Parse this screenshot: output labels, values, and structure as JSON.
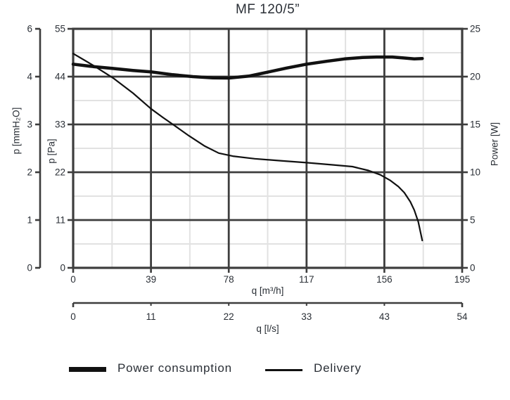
{
  "chart_data": {
    "type": "line",
    "title": "MF 120/5”",
    "colors": {
      "axis": "#3d3d3d",
      "minor_grid": "#e2e2e2",
      "curve": "#111111",
      "text": "#2a2f36"
    },
    "axes": {
      "x_primary": {
        "label": "q [m³/h]",
        "range": [
          0,
          195
        ],
        "ticks": [
          0,
          39,
          78,
          117,
          156,
          195
        ]
      },
      "x_secondary": {
        "label": "q [l/s]",
        "range": [
          0,
          54
        ],
        "tick_labels": [
          "0",
          "11",
          "22",
          "33",
          "43",
          "54"
        ]
      },
      "y_left_outer": {
        "label": "p [mmH₂O]",
        "range": [
          0,
          6
        ],
        "tick_labels_top_to_bottom": [
          "6",
          "4",
          "3",
          "2",
          "1",
          "0"
        ],
        "tick_positions_pa": [
          55,
          44,
          33,
          22,
          11,
          0
        ]
      },
      "y_left_inner": {
        "label": "p [Pa]",
        "range": [
          0,
          55
        ],
        "ticks": [
          0,
          11,
          22,
          33,
          44,
          55
        ]
      },
      "y_right": {
        "label": "Power [W]",
        "range": [
          0,
          25
        ],
        "ticks": [
          0,
          5,
          10,
          15,
          20,
          25
        ]
      }
    },
    "grid": {
      "major": true,
      "minor": true
    },
    "series": [
      {
        "name": "Delivery",
        "axis": "y_left_inner",
        "stroke_width": 2.2,
        "x": [
          0,
          10,
          20,
          30,
          39,
          45,
          50,
          58,
          66,
          73,
          80,
          91,
          105,
          117,
          130,
          140,
          148,
          154,
          159,
          163,
          166,
          169,
          171,
          173,
          175
        ],
        "y": [
          49.3,
          46.6,
          43.7,
          40.2,
          36.6,
          34.6,
          33.0,
          30.4,
          28.0,
          26.4,
          25.7,
          25.1,
          24.6,
          24.2,
          23.7,
          23.3,
          22.4,
          21.4,
          20.1,
          18.7,
          17.3,
          15.2,
          13.3,
          10.6,
          6.3
        ]
      },
      {
        "name": "Power consumption",
        "axis": "y_right",
        "stroke_width": 4.5,
        "x": [
          0,
          10,
          20,
          30,
          39,
          50,
          60,
          70,
          78,
          88,
          97,
          107,
          117,
          127,
          136,
          145,
          152,
          160,
          166,
          171,
          175
        ],
        "y": [
          21.3,
          21.05,
          20.85,
          20.65,
          20.5,
          20.2,
          20.0,
          19.87,
          19.85,
          20.05,
          20.45,
          20.9,
          21.3,
          21.6,
          21.85,
          22.0,
          22.05,
          22.05,
          21.95,
          21.85,
          21.9
        ]
      }
    ],
    "legend": {
      "position": "bottom",
      "items": [
        {
          "label": "Power consumption",
          "swatch": "thick-line"
        },
        {
          "label": "Delivery",
          "swatch": "thin-line"
        }
      ]
    }
  }
}
